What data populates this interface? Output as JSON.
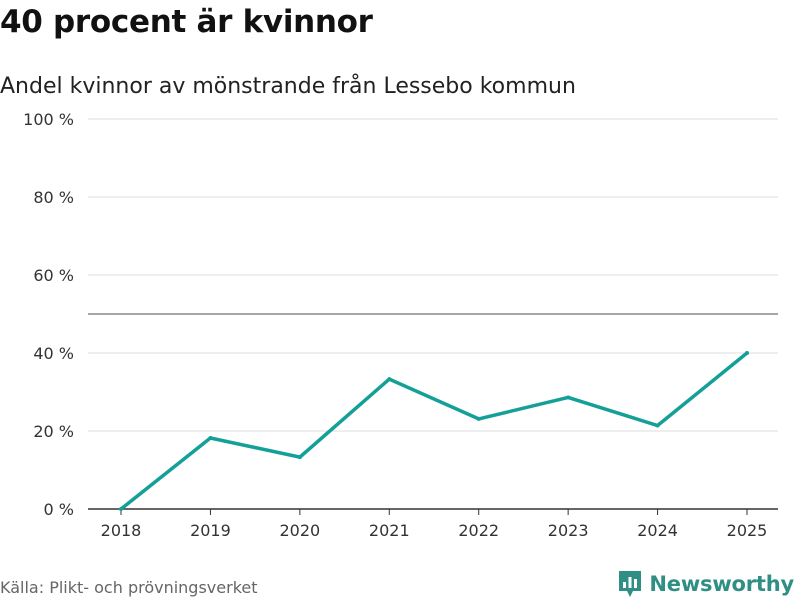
{
  "header": {
    "title": "40 procent är kvinnor",
    "subtitle": "Andel kvinnor av mönstrande från Lessebo kommun"
  },
  "footer": {
    "source": "Källa: Plikt- och prövningsverket",
    "brand": "Newsworthy"
  },
  "colors": {
    "line": "#14a098",
    "grid": "#dddddd",
    "reference": "#888888",
    "axis": "#333333",
    "brand": "#2f8f85"
  },
  "chart_data": {
    "type": "line",
    "title": "40 procent är kvinnor",
    "subtitle": "Andel kvinnor av mönstrande från Lessebo kommun",
    "x": [
      "2018",
      "2019",
      "2020",
      "2021",
      "2022",
      "2023",
      "2024",
      "2025"
    ],
    "series": [
      {
        "name": "Andel kvinnor",
        "values": [
          0,
          18.2,
          13.3,
          33.3,
          23.1,
          28.6,
          21.4,
          40.0
        ]
      }
    ],
    "ylim": [
      0,
      100
    ],
    "yticks": [
      0,
      20,
      40,
      60,
      80,
      100
    ],
    "ytick_labels": [
      "0 %",
      "20 %",
      "40 %",
      "60 %",
      "80 %",
      "100 %"
    ],
    "reference_line": 50,
    "grid": true,
    "xlabel": "",
    "ylabel": ""
  }
}
